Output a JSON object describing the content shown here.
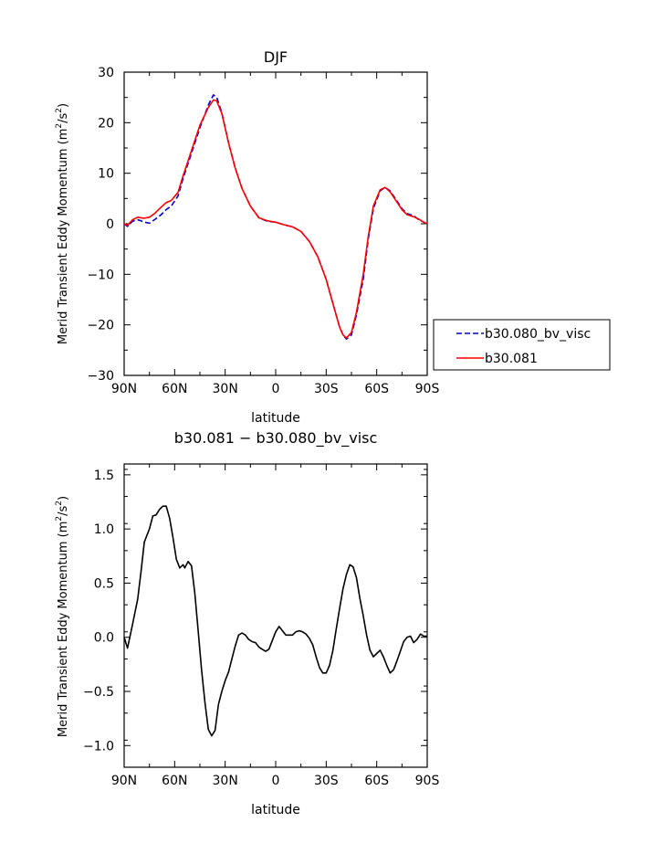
{
  "chart_data": [
    {
      "type": "line",
      "title": "DJF",
      "xlabel": "latitude",
      "ylabel": "Merid Transient Eddy Momentum (m²/s²)",
      "ylabel_main": "Merid Transient Eddy Momentum (m",
      "ylabel_exp1": "2",
      "ylabel_mid": "/s",
      "ylabel_exp2": "2",
      "ylabel_end": ")",
      "xlim": [
        90,
        -90
      ],
      "ylim": [
        -30,
        30
      ],
      "x_ticks": [
        90,
        60,
        30,
        0,
        -30,
        -60,
        -90
      ],
      "x_tick_labels": [
        "90N",
        "60N",
        "30N",
        "0",
        "30S",
        "60S",
        "90S"
      ],
      "y_ticks": [
        -30,
        -20,
        -10,
        0,
        10,
        20,
        30
      ],
      "y_tick_labels": [
        "−30",
        "−20",
        "−10",
        "0",
        "10",
        "20",
        "30"
      ],
      "legend_position": "right",
      "series": [
        {
          "name": "b30.080_bv_visc",
          "color": "#0000cc",
          "dash": "dashed",
          "points": [
            [
              90,
              0
            ],
            [
              88,
              -0.5
            ],
            [
              85,
              0.5
            ],
            [
              82,
              0.8
            ],
            [
              80,
              0.6
            ],
            [
              78,
              0.3
            ],
            [
              75,
              0.1
            ],
            [
              72,
              0.8
            ],
            [
              68,
              1.8
            ],
            [
              65,
              2.8
            ],
            [
              62,
              3.5
            ],
            [
              58,
              5.5
            ],
            [
              55,
              9
            ],
            [
              50,
              14
            ],
            [
              45,
              19
            ],
            [
              40,
              23.5
            ],
            [
              37,
              25.5
            ],
            [
              35,
              25
            ],
            [
              32,
              22
            ],
            [
              28,
              16
            ],
            [
              24,
              11
            ],
            [
              20,
              7
            ],
            [
              15,
              3.5
            ],
            [
              10,
              1.2
            ],
            [
              5,
              0.5
            ],
            [
              0,
              0.3
            ],
            [
              -5,
              -0.2
            ],
            [
              -10,
              -0.6
            ],
            [
              -15,
              -1.5
            ],
            [
              -20,
              -3.5
            ],
            [
              -25,
              -6.5
            ],
            [
              -30,
              -11
            ],
            [
              -35,
              -17
            ],
            [
              -38,
              -20.5
            ],
            [
              -40,
              -22
            ],
            [
              -42,
              -22.8
            ],
            [
              -45,
              -22
            ],
            [
              -48,
              -18
            ],
            [
              -52,
              -11
            ],
            [
              -55,
              -3
            ],
            [
              -58,
              3
            ],
            [
              -62,
              6.5
            ],
            [
              -65,
              7.2
            ],
            [
              -68,
              6.5
            ],
            [
              -72,
              4.5
            ],
            [
              -75,
              3
            ],
            [
              -78,
              2
            ],
            [
              -82,
              1.6
            ],
            [
              -85,
              0.8
            ],
            [
              -88,
              0.3
            ],
            [
              -90,
              0
            ]
          ]
        },
        {
          "name": "b30.081",
          "color": "#ff0000",
          "dash": "solid",
          "points": [
            [
              90,
              0
            ],
            [
              88,
              -0.3
            ],
            [
              85,
              0.8
            ],
            [
              82,
              1.3
            ],
            [
              80,
              1.2
            ],
            [
              78,
              1.1
            ],
            [
              75,
              1.3
            ],
            [
              72,
              2
            ],
            [
              68,
              3.3
            ],
            [
              65,
              4.2
            ],
            [
              62,
              4.6
            ],
            [
              58,
              6.2
            ],
            [
              55,
              9.5
            ],
            [
              50,
              14.5
            ],
            [
              45,
              19.5
            ],
            [
              40,
              23
            ],
            [
              37,
              24.5
            ],
            [
              35,
              24.3
            ],
            [
              32,
              21.8
            ],
            [
              28,
              16
            ],
            [
              24,
              11
            ],
            [
              20,
              7
            ],
            [
              15,
              3.5
            ],
            [
              10,
              1.2
            ],
            [
              5,
              0.6
            ],
            [
              0,
              0.3
            ],
            [
              -5,
              -0.2
            ],
            [
              -10,
              -0.6
            ],
            [
              -15,
              -1.5
            ],
            [
              -20,
              -3.5
            ],
            [
              -25,
              -6.5
            ],
            [
              -30,
              -11
            ],
            [
              -35,
              -17
            ],
            [
              -38,
              -20.5
            ],
            [
              -40,
              -22
            ],
            [
              -42,
              -22.6
            ],
            [
              -45,
              -21.5
            ],
            [
              -48,
              -17.5
            ],
            [
              -52,
              -10
            ],
            [
              -55,
              -2.5
            ],
            [
              -58,
              3.5
            ],
            [
              -62,
              6.7
            ],
            [
              -65,
              7.2
            ],
            [
              -68,
              6.3
            ],
            [
              -72,
              4.3
            ],
            [
              -75,
              2.8
            ],
            [
              -78,
              1.8
            ],
            [
              -82,
              1.4
            ],
            [
              -85,
              0.9
            ],
            [
              -88,
              0.3
            ],
            [
              -90,
              0
            ]
          ]
        }
      ]
    },
    {
      "type": "line",
      "title": "b30.081 − b30.080_bv_visc",
      "xlabel": "latitude",
      "ylabel": "Merid Transient Eddy Momentum (m²/s²)",
      "ylabel_main": "Merid Transient Eddy Momentum (m",
      "ylabel_exp1": "2",
      "ylabel_mid": "/s",
      "ylabel_exp2": "2",
      "ylabel_end": ")",
      "xlim": [
        90,
        -90
      ],
      "ylim": [
        -1.2,
        1.6
      ],
      "x_ticks": [
        90,
        60,
        30,
        0,
        -30,
        -60,
        -90
      ],
      "x_tick_labels": [
        "90N",
        "60N",
        "30N",
        "0",
        "30S",
        "60S",
        "90S"
      ],
      "y_ticks": [
        -1.0,
        -0.5,
        0.0,
        0.5,
        1.0,
        1.5
      ],
      "y_tick_labels": [
        "−1.0",
        "−0.5",
        "0.0",
        "0.5",
        "1.0",
        "1.5"
      ],
      "series": [
        {
          "color": "#000000",
          "dash": "solid",
          "points": [
            [
              90,
              0
            ],
            [
              88,
              -0.1
            ],
            [
              85,
              0.12
            ],
            [
              82,
              0.35
            ],
            [
              80,
              0.6
            ],
            [
              78,
              0.88
            ],
            [
              75,
              1.0
            ],
            [
              73,
              1.12
            ],
            [
              71,
              1.13
            ],
            [
              69,
              1.18
            ],
            [
              67,
              1.21
            ],
            [
              65,
              1.21
            ],
            [
              63,
              1.1
            ],
            [
              61,
              0.92
            ],
            [
              59,
              0.72
            ],
            [
              57,
              0.64
            ],
            [
              55,
              0.67
            ],
            [
              54,
              0.64
            ],
            [
              52,
              0.7
            ],
            [
              50,
              0.66
            ],
            [
              48,
              0.4
            ],
            [
              46,
              0.05
            ],
            [
              44,
              -0.3
            ],
            [
              42,
              -0.6
            ],
            [
              40,
              -0.85
            ],
            [
              38,
              -0.91
            ],
            [
              36,
              -0.86
            ],
            [
              34,
              -0.62
            ],
            [
              32,
              -0.5
            ],
            [
              30,
              -0.4
            ],
            [
              28,
              -0.32
            ],
            [
              26,
              -0.2
            ],
            [
              24,
              -0.08
            ],
            [
              22,
              0.02
            ],
            [
              20,
              0.04
            ],
            [
              18,
              0.02
            ],
            [
              16,
              -0.02
            ],
            [
              14,
              -0.04
            ],
            [
              12,
              -0.05
            ],
            [
              10,
              -0.09
            ],
            [
              8,
              -0.11
            ],
            [
              6,
              -0.13
            ],
            [
              4,
              -0.11
            ],
            [
              2,
              -0.03
            ],
            [
              0,
              0.05
            ],
            [
              -2,
              0.1
            ],
            [
              -4,
              0.06
            ],
            [
              -6,
              0.02
            ],
            [
              -8,
              0.02
            ],
            [
              -10,
              0.02
            ],
            [
              -12,
              0.05
            ],
            [
              -14,
              0.06
            ],
            [
              -16,
              0.05
            ],
            [
              -18,
              0.03
            ],
            [
              -20,
              -0.01
            ],
            [
              -22,
              -0.07
            ],
            [
              -24,
              -0.18
            ],
            [
              -26,
              -0.28
            ],
            [
              -28,
              -0.33
            ],
            [
              -30,
              -0.33
            ],
            [
              -32,
              -0.26
            ],
            [
              -34,
              -0.12
            ],
            [
              -36,
              0.08
            ],
            [
              -38,
              0.27
            ],
            [
              -40,
              0.45
            ],
            [
              -42,
              0.58
            ],
            [
              -44,
              0.67
            ],
            [
              -46,
              0.65
            ],
            [
              -48,
              0.55
            ],
            [
              -50,
              0.36
            ],
            [
              -52,
              0.2
            ],
            [
              -54,
              0.02
            ],
            [
              -56,
              -0.12
            ],
            [
              -58,
              -0.18
            ],
            [
              -60,
              -0.15
            ],
            [
              -62,
              -0.12
            ],
            [
              -64,
              -0.18
            ],
            [
              -66,
              -0.26
            ],
            [
              -68,
              -0.33
            ],
            [
              -70,
              -0.3
            ],
            [
              -72,
              -0.22
            ],
            [
              -74,
              -0.13
            ],
            [
              -76,
              -0.04
            ],
            [
              -78,
              0.0
            ],
            [
              -80,
              0.01
            ],
            [
              -82,
              -0.05
            ],
            [
              -84,
              -0.02
            ],
            [
              -86,
              0.03
            ],
            [
              -88,
              0.01
            ],
            [
              -90,
              0.01
            ]
          ]
        }
      ]
    }
  ]
}
